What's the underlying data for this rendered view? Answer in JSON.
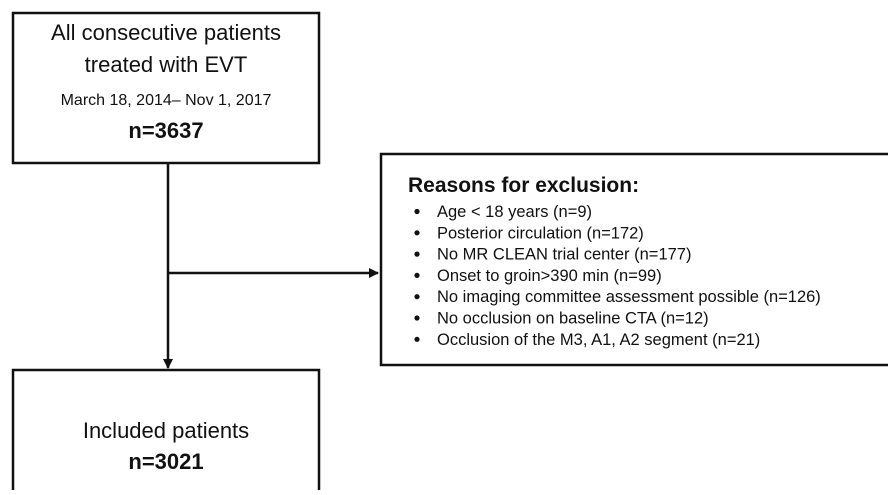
{
  "boxes": {
    "start": {
      "lines": [
        "All consecutive patients",
        "treated with EVT"
      ],
      "period": "March 18, 2014– Nov 1, 2017",
      "n": "n=3637"
    },
    "exclusion": {
      "title": "Reasons for exclusion:",
      "items": [
        "Age < 18 years (n=9)",
        "Posterior circulation (n=172)",
        "No MR CLEAN trial center (n=177)",
        "Onset to groin>390 min (n=99)",
        "No imaging committee assessment possible (n=126)",
        "No occlusion on baseline CTA (n=12)",
        "Occlusion of the M3, A1, A2 segment (n=21)"
      ]
    },
    "included": {
      "lines": [
        "Included patients"
      ],
      "n": "n=3021"
    }
  }
}
